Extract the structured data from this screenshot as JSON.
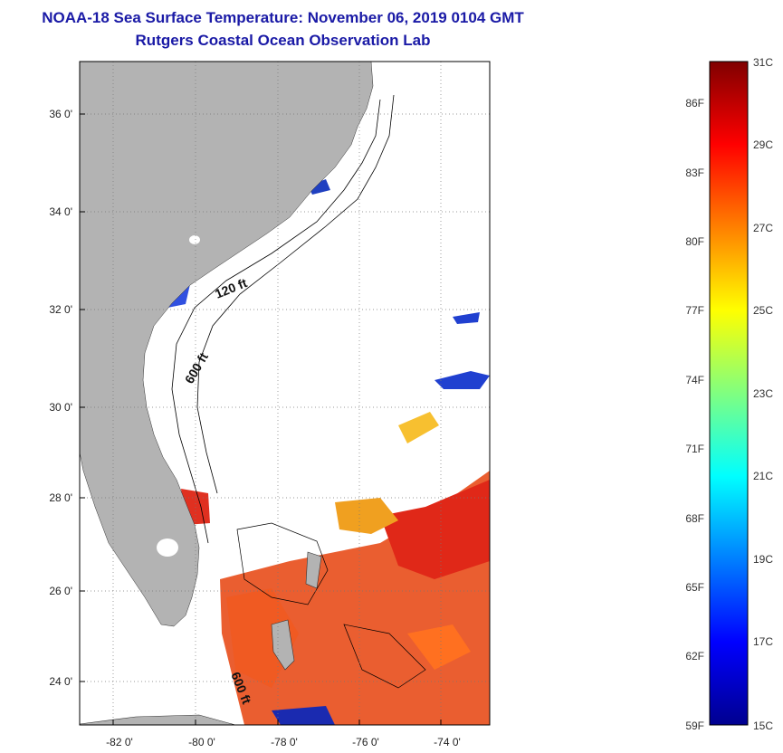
{
  "title": "NOAA-18 Sea Surface Temperature:  November 06, 2019 0104 GMT",
  "subtitle": "Rutgers Coastal Ocean Observation Lab",
  "map": {
    "lon_range": [
      -83,
      -73
    ],
    "lat_range": [
      23,
      37
    ],
    "x_ticks": [
      "-82 0'",
      "-80 0'",
      "-78 0'",
      "-76 0'",
      "-74 0'"
    ],
    "y_ticks": [
      "36 0'",
      "34 0'",
      "32 0'",
      "30 0'",
      "28 0'",
      "26 0'",
      "24 0'"
    ],
    "land_color": "#b3b3b3",
    "grid": "dotted"
  },
  "isobaths": [
    "120 ft",
    "600 ft",
    "600 ft"
  ],
  "colorbar": {
    "fahrenheit": [
      "86F",
      "83F",
      "80F",
      "77F",
      "74F",
      "71F",
      "68F",
      "65F",
      "62F",
      "59F"
    ],
    "celsius": [
      "31C",
      "29C",
      "27C",
      "25C",
      "23C",
      "21C",
      "19C",
      "17C",
      "15C"
    ],
    "colors": [
      "#00008f",
      "#0000ff",
      "#0080ff",
      "#00ffff",
      "#80ff80",
      "#ffff00",
      "#ff8000",
      "#ff0000",
      "#800000"
    ]
  }
}
